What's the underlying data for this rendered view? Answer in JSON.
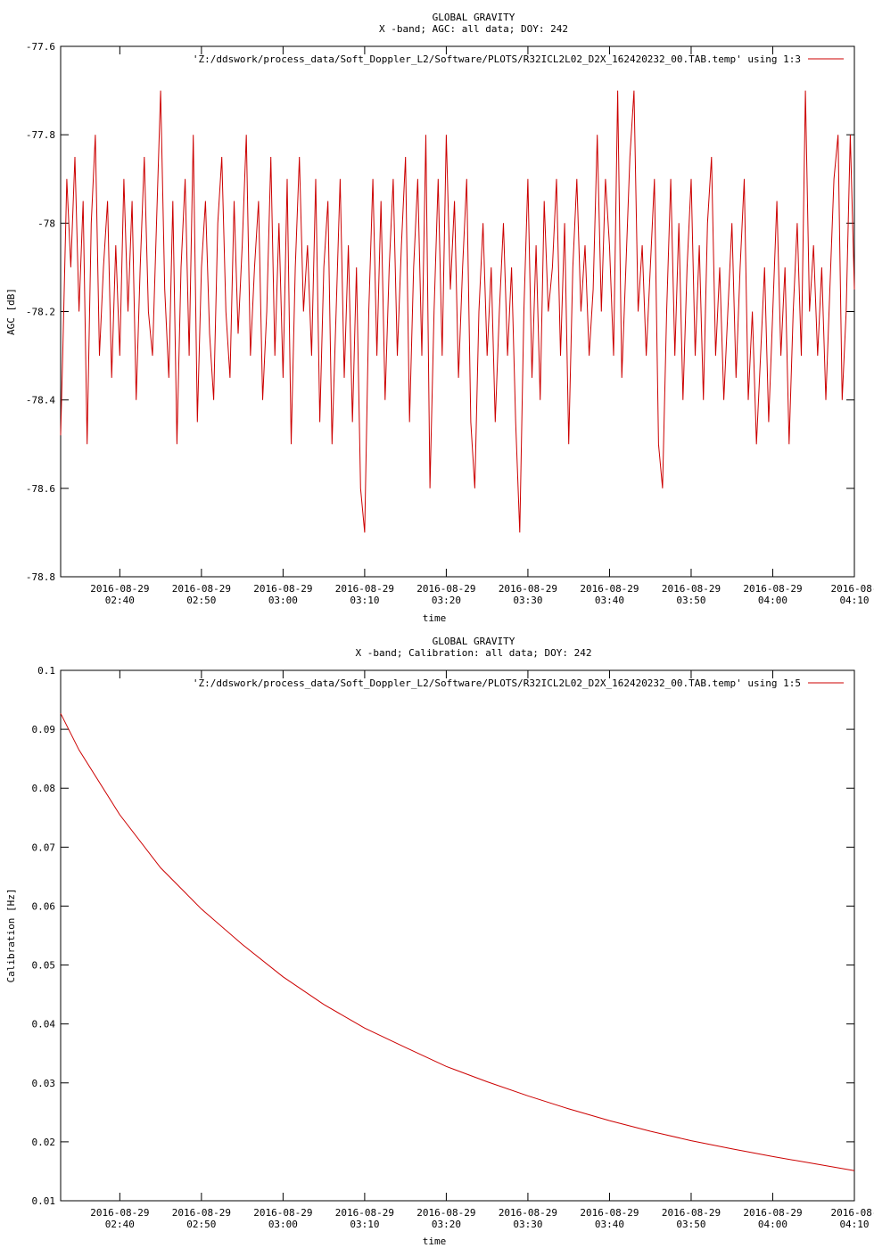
{
  "chart_data": [
    {
      "type": "line",
      "title": "GLOBAL GRAVITY",
      "subtitle": "X -band; AGC: all data; DOY: 242",
      "xlabel": "time",
      "ylabel": "AGC [dB]",
      "ylim": [
        -78.8,
        -77.6
      ],
      "yticks": [
        "-77.6",
        "-77.8",
        "-78",
        "-78.2",
        "-78.4",
        "-78.6",
        "-78.8"
      ],
      "xlim": [
        "2016-08-29 02:32:45",
        "2016-08-29 04:10:00"
      ],
      "xticks": [
        {
          "date": "2016-08-29",
          "time": "02:40"
        },
        {
          "date": "2016-08-29",
          "time": "02:50"
        },
        {
          "date": "2016-08-29",
          "time": "03:00"
        },
        {
          "date": "2016-08-29",
          "time": "03:10"
        },
        {
          "date": "2016-08-29",
          "time": "03:20"
        },
        {
          "date": "2016-08-29",
          "time": "03:30"
        },
        {
          "date": "2016-08-29",
          "time": "03:40"
        },
        {
          "date": "2016-08-29",
          "time": "03:50"
        },
        {
          "date": "2016-08-29",
          "time": "04:00"
        },
        {
          "date": "2016-08-",
          "time": "04:10"
        }
      ],
      "series": [
        {
          "name": "'Z:/ddswork/process_data/Soft_Doppler_L2/Software/PLOTS/R32ICL2L02_D2X_162420232_00.TAB.temp' using 1:3",
          "color": "#cc0000",
          "points": [
            [
              "02:32:45",
              -78.48
            ],
            [
              "02:33:00",
              -78.3
            ],
            [
              "02:33:30",
              -77.9
            ],
            [
              "02:34:00",
              -78.1
            ],
            [
              "02:34:30",
              -77.85
            ],
            [
              "02:35:00",
              -78.2
            ],
            [
              "02:35:30",
              -77.95
            ],
            [
              "02:36:00",
              -78.5
            ],
            [
              "02:36:30",
              -78.0
            ],
            [
              "02:37:00",
              -77.8
            ],
            [
              "02:37:30",
              -78.3
            ],
            [
              "02:38:00",
              -78.1
            ],
            [
              "02:38:30",
              -77.95
            ],
            [
              "02:39:00",
              -78.35
            ],
            [
              "02:39:30",
              -78.05
            ],
            [
              "02:40:00",
              -78.3
            ],
            [
              "02:40:30",
              -77.9
            ],
            [
              "02:41:00",
              -78.2
            ],
            [
              "02:41:30",
              -77.95
            ],
            [
              "02:42:00",
              -78.4
            ],
            [
              "02:42:30",
              -78.1
            ],
            [
              "02:43:00",
              -77.85
            ],
            [
              "02:43:30",
              -78.2
            ],
            [
              "02:44:00",
              -78.3
            ],
            [
              "02:44:30",
              -78.0
            ],
            [
              "02:45:00",
              -77.7
            ],
            [
              "02:45:30",
              -78.15
            ],
            [
              "02:46:00",
              -78.35
            ],
            [
              "02:46:30",
              -77.95
            ],
            [
              "02:47:00",
              -78.5
            ],
            [
              "02:47:30",
              -78.1
            ],
            [
              "02:48:00",
              -77.9
            ],
            [
              "02:48:30",
              -78.3
            ],
            [
              "02:49:00",
              -77.8
            ],
            [
              "02:49:30",
              -78.45
            ],
            [
              "02:50:00",
              -78.1
            ],
            [
              "02:50:30",
              -77.95
            ],
            [
              "02:51:00",
              -78.25
            ],
            [
              "02:51:30",
              -78.4
            ],
            [
              "02:52:00",
              -78.0
            ],
            [
              "02:52:30",
              -77.85
            ],
            [
              "02:53:00",
              -78.2
            ],
            [
              "02:53:30",
              -78.35
            ],
            [
              "02:54:00",
              -77.95
            ],
            [
              "02:54:30",
              -78.25
            ],
            [
              "02:55:00",
              -78.05
            ],
            [
              "02:55:30",
              -77.8
            ],
            [
              "02:56:00",
              -78.3
            ],
            [
              "02:56:30",
              -78.1
            ],
            [
              "02:57:00",
              -77.95
            ],
            [
              "02:57:30",
              -78.4
            ],
            [
              "02:58:00",
              -78.2
            ],
            [
              "02:58:30",
              -77.85
            ],
            [
              "02:59:00",
              -78.3
            ],
            [
              "02:59:30",
              -78.0
            ],
            [
              "03:00:00",
              -78.35
            ],
            [
              "03:00:30",
              -77.9
            ],
            [
              "03:01:00",
              -78.5
            ],
            [
              "03:01:30",
              -78.1
            ],
            [
              "03:02:00",
              -77.85
            ],
            [
              "03:02:30",
              -78.2
            ],
            [
              "03:03:00",
              -78.05
            ],
            [
              "03:03:30",
              -78.3
            ],
            [
              "03:04:00",
              -77.9
            ],
            [
              "03:04:30",
              -78.45
            ],
            [
              "03:05:00",
              -78.1
            ],
            [
              "03:05:30",
              -77.95
            ],
            [
              "03:06:00",
              -78.5
            ],
            [
              "03:06:30",
              -78.2
            ],
            [
              "03:07:00",
              -77.9
            ],
            [
              "03:07:30",
              -78.35
            ],
            [
              "03:08:00",
              -78.05
            ],
            [
              "03:08:30",
              -78.45
            ],
            [
              "03:09:00",
              -78.1
            ],
            [
              "03:09:30",
              -78.6
            ],
            [
              "03:10:00",
              -78.7
            ],
            [
              "03:10:30",
              -78.2
            ],
            [
              "03:11:00",
              -77.9
            ],
            [
              "03:11:30",
              -78.3
            ],
            [
              "03:12:00",
              -77.95
            ],
            [
              "03:12:30",
              -78.4
            ],
            [
              "03:13:00",
              -78.1
            ],
            [
              "03:13:30",
              -77.9
            ],
            [
              "03:14:00",
              -78.3
            ],
            [
              "03:14:30",
              -78.05
            ],
            [
              "03:15:00",
              -77.85
            ],
            [
              "03:15:30",
              -78.45
            ],
            [
              "03:16:00",
              -78.1
            ],
            [
              "03:16:30",
              -77.9
            ],
            [
              "03:17:00",
              -78.3
            ],
            [
              "03:17:30",
              -77.8
            ],
            [
              "03:18:00",
              -78.6
            ],
            [
              "03:18:30",
              -78.2
            ],
            [
              "03:19:00",
              -77.9
            ],
            [
              "03:19:30",
              -78.3
            ],
            [
              "03:20:00",
              -77.8
            ],
            [
              "03:20:30",
              -78.15
            ],
            [
              "03:21:00",
              -77.95
            ],
            [
              "03:21:30",
              -78.35
            ],
            [
              "03:22:00",
              -78.1
            ],
            [
              "03:22:30",
              -77.9
            ],
            [
              "03:23:00",
              -78.45
            ],
            [
              "03:23:30",
              -78.6
            ],
            [
              "03:24:00",
              -78.2
            ],
            [
              "03:24:30",
              -78.0
            ],
            [
              "03:25:00",
              -78.3
            ],
            [
              "03:25:30",
              -78.1
            ],
            [
              "03:26:00",
              -78.45
            ],
            [
              "03:26:30",
              -78.2
            ],
            [
              "03:27:00",
              -78.0
            ],
            [
              "03:27:30",
              -78.3
            ],
            [
              "03:28:00",
              -78.1
            ],
            [
              "03:28:30",
              -78.45
            ],
            [
              "03:29:00",
              -78.7
            ],
            [
              "03:29:30",
              -78.2
            ],
            [
              "03:30:00",
              -77.9
            ],
            [
              "03:30:30",
              -78.35
            ],
            [
              "03:31:00",
              -78.05
            ],
            [
              "03:31:30",
              -78.4
            ],
            [
              "03:32:00",
              -77.95
            ],
            [
              "03:32:30",
              -78.2
            ],
            [
              "03:33:00",
              -78.1
            ],
            [
              "03:33:30",
              -77.9
            ],
            [
              "03:34:00",
              -78.3
            ],
            [
              "03:34:30",
              -78.0
            ],
            [
              "03:35:00",
              -78.5
            ],
            [
              "03:35:30",
              -78.1
            ],
            [
              "03:36:00",
              -77.9
            ],
            [
              "03:36:30",
              -78.2
            ],
            [
              "03:37:00",
              -78.05
            ],
            [
              "03:37:30",
              -78.3
            ],
            [
              "03:38:00",
              -78.15
            ],
            [
              "03:38:30",
              -77.8
            ],
            [
              "03:39:00",
              -78.2
            ],
            [
              "03:39:30",
              -77.9
            ],
            [
              "03:40:00",
              -78.05
            ],
            [
              "03:40:30",
              -78.3
            ],
            [
              "03:41:00",
              -77.7
            ],
            [
              "03:41:30",
              -78.35
            ],
            [
              "03:42:00",
              -78.1
            ],
            [
              "03:42:30",
              -77.85
            ],
            [
              "03:43:00",
              -77.7
            ],
            [
              "03:43:30",
              -78.2
            ],
            [
              "03:44:00",
              -78.05
            ],
            [
              "03:44:30",
              -78.3
            ],
            [
              "03:45:00",
              -78.1
            ],
            [
              "03:45:30",
              -77.9
            ],
            [
              "03:46:00",
              -78.5
            ],
            [
              "03:46:30",
              -78.6
            ],
            [
              "03:47:00",
              -78.2
            ],
            [
              "03:47:30",
              -77.9
            ],
            [
              "03:48:00",
              -78.3
            ],
            [
              "03:48:30",
              -78.0
            ],
            [
              "03:49:00",
              -78.4
            ],
            [
              "03:49:30",
              -78.1
            ],
            [
              "03:50:00",
              -77.9
            ],
            [
              "03:50:30",
              -78.3
            ],
            [
              "03:51:00",
              -78.05
            ],
            [
              "03:51:30",
              -78.4
            ],
            [
              "03:52:00",
              -78.0
            ],
            [
              "03:52:30",
              -77.85
            ],
            [
              "03:53:00",
              -78.3
            ],
            [
              "03:53:30",
              -78.1
            ],
            [
              "03:54:00",
              -78.4
            ],
            [
              "03:54:30",
              -78.2
            ],
            [
              "03:55:00",
              -78.0
            ],
            [
              "03:55:30",
              -78.35
            ],
            [
              "03:56:00",
              -78.1
            ],
            [
              "03:56:30",
              -77.9
            ],
            [
              "03:57:00",
              -78.4
            ],
            [
              "03:57:30",
              -78.2
            ],
            [
              "03:58:00",
              -78.5
            ],
            [
              "03:58:30",
              -78.3
            ],
            [
              "03:59:00",
              -78.1
            ],
            [
              "03:59:30",
              -78.45
            ],
            [
              "04:00:00",
              -78.2
            ],
            [
              "04:00:30",
              -77.95
            ],
            [
              "04:01:00",
              -78.3
            ],
            [
              "04:01:30",
              -78.1
            ],
            [
              "04:02:00",
              -78.5
            ],
            [
              "04:02:30",
              -78.2
            ],
            [
              "04:03:00",
              -78.0
            ],
            [
              "04:03:30",
              -78.3
            ],
            [
              "04:04:00",
              -77.7
            ],
            [
              "04:04:30",
              -78.2
            ],
            [
              "04:05:00",
              -78.05
            ],
            [
              "04:05:30",
              -78.3
            ],
            [
              "04:06:00",
              -78.1
            ],
            [
              "04:06:30",
              -78.4
            ],
            [
              "04:07:00",
              -78.15
            ],
            [
              "04:07:30",
              -77.9
            ],
            [
              "04:08:00",
              -77.8
            ],
            [
              "04:08:30",
              -78.4
            ],
            [
              "04:09:00",
              -78.2
            ],
            [
              "04:09:30",
              -77.8
            ],
            [
              "04:10:00",
              -78.15
            ]
          ]
        }
      ]
    },
    {
      "type": "line",
      "title": "GLOBAL GRAVITY",
      "subtitle": "X -band; Calibration: all data; DOY: 242",
      "xlabel": "time",
      "ylabel": "Calibration [Hz]",
      "ylim": [
        0.01,
        0.1
      ],
      "yticks": [
        "0.1",
        "0.09",
        "0.08",
        "0.07",
        "0.06",
        "0.05",
        "0.04",
        "0.03",
        "0.02",
        "0.01"
      ],
      "xlim": [
        "2016-08-29 02:32:45",
        "2016-08-29 04:10:00"
      ],
      "xticks": [
        {
          "date": "2016-08-29",
          "time": "02:40"
        },
        {
          "date": "2016-08-29",
          "time": "02:50"
        },
        {
          "date": "2016-08-29",
          "time": "03:00"
        },
        {
          "date": "2016-08-29",
          "time": "03:10"
        },
        {
          "date": "2016-08-29",
          "time": "03:20"
        },
        {
          "date": "2016-08-29",
          "time": "03:30"
        },
        {
          "date": "2016-08-29",
          "time": "03:40"
        },
        {
          "date": "2016-08-29",
          "time": "03:50"
        },
        {
          "date": "2016-08-29",
          "time": "04:00"
        },
        {
          "date": "2016-08-",
          "time": "04:10"
        }
      ],
      "series": [
        {
          "name": "'Z:/ddswork/process_data/Soft_Doppler_L2/Software/PLOTS/R32ICL2L02_D2X_162420232_00.TAB.temp' using 1:5",
          "color": "#cc0000",
          "points": [
            [
              "02:32:45",
              0.0927
            ],
            [
              "02:35:00",
              0.0865
            ],
            [
              "02:40:00",
              0.0755
            ],
            [
              "02:45:00",
              0.0665
            ],
            [
              "02:50:00",
              0.0595
            ],
            [
              "02:55:00",
              0.0535
            ],
            [
              "03:00:00",
              0.048
            ],
            [
              "03:05:00",
              0.0433
            ],
            [
              "03:10:00",
              0.0393
            ],
            [
              "03:15:00",
              0.036
            ],
            [
              "03:20:00",
              0.0328
            ],
            [
              "03:25:00",
              0.0302
            ],
            [
              "03:30:00",
              0.0278
            ],
            [
              "03:35:00",
              0.0256
            ],
            [
              "03:40:00",
              0.0236
            ],
            [
              "03:45:00",
              0.0218
            ],
            [
              "03:50:00",
              0.0202
            ],
            [
              "03:55:00",
              0.0188
            ],
            [
              "04:00:00",
              0.0175
            ],
            [
              "04:05:00",
              0.0163
            ],
            [
              "04:10:00",
              0.0151
            ]
          ]
        }
      ]
    }
  ]
}
